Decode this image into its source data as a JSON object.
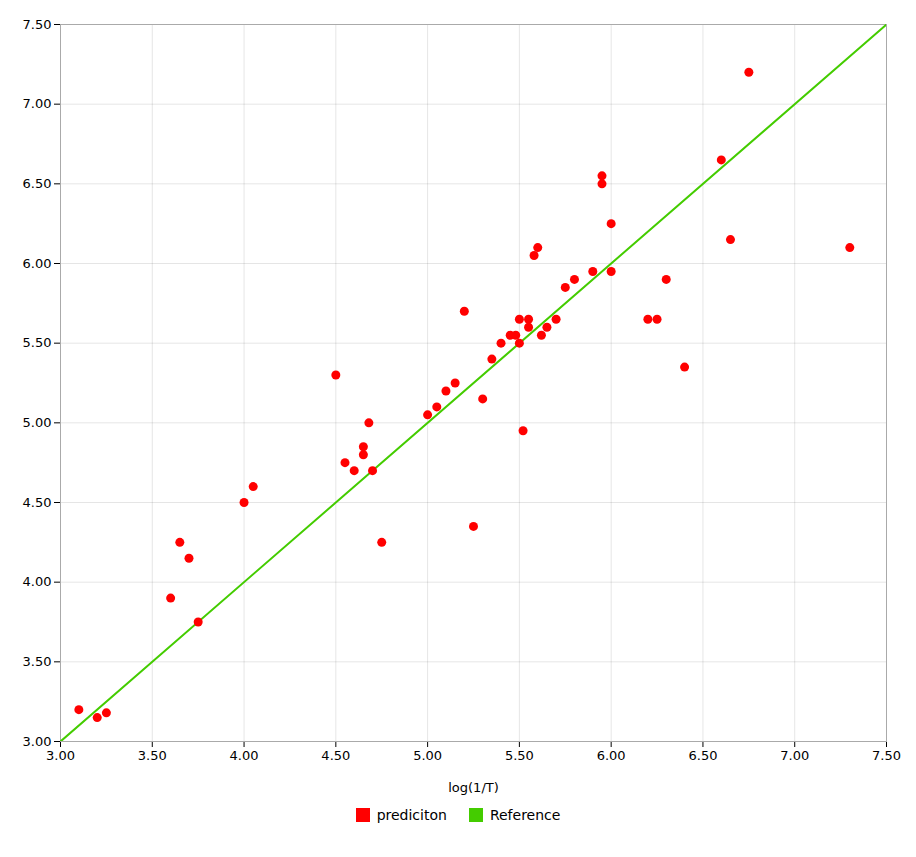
{
  "chart_data": {
    "type": "scatter",
    "xlabel": "log(1/T)",
    "series": [
      {
        "name": "prediciton",
        "type": "scatter",
        "color": "#ff0000",
        "x": [
          3.1,
          3.2,
          3.25,
          3.6,
          3.65,
          3.7,
          3.75,
          4.0,
          4.05,
          4.5,
          4.55,
          4.6,
          4.65,
          4.65,
          4.68,
          4.7,
          4.75,
          5.0,
          5.05,
          5.1,
          5.15,
          5.2,
          5.25,
          5.3,
          5.35,
          5.4,
          5.45,
          5.48,
          5.5,
          5.5,
          5.52,
          5.55,
          5.55,
          5.58,
          5.6,
          5.62,
          5.65,
          5.7,
          5.75,
          5.8,
          5.9,
          5.95,
          5.95,
          6.0,
          6.0,
          6.2,
          6.25,
          6.3,
          6.4,
          6.6,
          6.65,
          6.75,
          7.3
        ],
        "values": [
          3.2,
          3.15,
          3.18,
          3.9,
          4.25,
          4.15,
          3.75,
          4.5,
          4.6,
          5.3,
          4.75,
          4.7,
          4.8,
          4.85,
          5.0,
          4.7,
          4.25,
          5.05,
          5.1,
          5.2,
          5.25,
          5.7,
          4.35,
          5.15,
          5.4,
          5.5,
          5.55,
          5.55,
          5.65,
          5.5,
          4.95,
          5.6,
          5.65,
          6.05,
          6.1,
          5.55,
          5.6,
          5.65,
          5.85,
          5.9,
          5.95,
          6.5,
          6.55,
          6.25,
          5.95,
          5.65,
          5.65,
          5.9,
          5.35,
          6.65,
          6.15,
          7.2,
          6.1
        ]
      },
      {
        "name": "Reference",
        "type": "line",
        "color": "#44cc00",
        "x": [
          3.0,
          7.5
        ],
        "values": [
          3.0,
          7.5
        ]
      }
    ],
    "xlim": [
      3.0,
      7.5
    ],
    "ylim": [
      3.0,
      7.5
    ],
    "xticks": [
      {
        "value": 3.0,
        "label": "3.00"
      },
      {
        "value": 3.5,
        "label": "3.50"
      },
      {
        "value": 4.0,
        "label": "4.00"
      },
      {
        "value": 4.5,
        "label": "4.50"
      },
      {
        "value": 5.0,
        "label": "5.00"
      },
      {
        "value": 5.5,
        "label": "5.50"
      },
      {
        "value": 6.0,
        "label": "6.00"
      },
      {
        "value": 6.5,
        "label": "6.50"
      },
      {
        "value": 7.0,
        "label": "7.00"
      },
      {
        "value": 7.5,
        "label": "7.50"
      }
    ],
    "yticks": [
      {
        "value": 3.0,
        "label": "3.00"
      },
      {
        "value": 3.5,
        "label": "3.50"
      },
      {
        "value": 4.0,
        "label": "4.00"
      },
      {
        "value": 4.5,
        "label": "4.50"
      },
      {
        "value": 5.0,
        "label": "5.00"
      },
      {
        "value": 5.5,
        "label": "5.50"
      },
      {
        "value": 6.0,
        "label": "6.00"
      },
      {
        "value": 6.5,
        "label": "6.50"
      },
      {
        "value": 7.0,
        "label": "7.00"
      },
      {
        "value": 7.5,
        "label": "7.50"
      }
    ],
    "grid": true,
    "legend": "bottom"
  }
}
